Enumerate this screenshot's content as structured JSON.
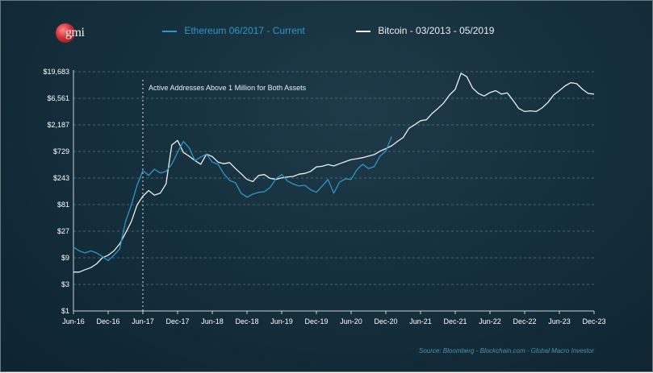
{
  "brand": {
    "logo_text": "gmi"
  },
  "legend": {
    "eth_label": "Ethereum 06/2017 - Current",
    "btc_label": "Bitcoin - 03/2013 - 05/2019"
  },
  "colors": {
    "ethereum": "#2e96c8",
    "bitcoin": "#e9eef1",
    "background": "#15303d",
    "axis_text": "#ffffff"
  },
  "source": "Source: Bloomberg - Blockchain.com - Global Macro Investor",
  "chart_data": {
    "type": "line",
    "y_scale": "log",
    "ylim": [
      1,
      19683
    ],
    "y_ticks": [
      {
        "value": 1,
        "label": "$1"
      },
      {
        "value": 3,
        "label": "$3"
      },
      {
        "value": 9,
        "label": "$9"
      },
      {
        "value": 27,
        "label": "$27"
      },
      {
        "value": 81,
        "label": "$81"
      },
      {
        "value": 243,
        "label": "$243"
      },
      {
        "value": 729,
        "label": "$729"
      },
      {
        "value": 2187,
        "label": "$2,187"
      },
      {
        "value": 6561,
        "label": "$6,561"
      },
      {
        "value": 19683,
        "label": "$19,683"
      }
    ],
    "x_ticks": [
      "Jun-16",
      "Dec-16",
      "Jun-17",
      "Dec-17",
      "Jun-18",
      "Dec-18",
      "Jun-19",
      "Dec-19",
      "Jun-20",
      "Dec-20",
      "Jun-21",
      "Dec-21",
      "Jun-22",
      "Dec-22",
      "Jun-23",
      "Dec-23"
    ],
    "annotation": {
      "x": "Jun-17",
      "text": "Active  Addresses Above 1 Million for Both Assets"
    },
    "grid": {
      "horizontal": true,
      "style": "dashed"
    },
    "series": [
      {
        "name": "Ethereum 06/2017 - Current",
        "points": [
          [
            "Jun-16",
            14
          ],
          [
            "Jul-16",
            12
          ],
          [
            "Aug-16",
            11
          ],
          [
            "Sep-16",
            12
          ],
          [
            "Oct-16",
            11
          ],
          [
            "Nov-16",
            9.5
          ],
          [
            "Dec-16",
            8
          ],
          [
            "Jan-17",
            10
          ],
          [
            "Feb-17",
            13
          ],
          [
            "Mar-17",
            40
          ],
          [
            "Apr-17",
            80
          ],
          [
            "May-17",
            180
          ],
          [
            "Jun-17",
            330
          ],
          [
            "Jul-17",
            270
          ],
          [
            "Aug-17",
            350
          ],
          [
            "Sep-17",
            300
          ],
          [
            "Oct-17",
            320
          ],
          [
            "Nov-17",
            430
          ],
          [
            "Dec-17",
            700
          ],
          [
            "Jan-18",
            1100
          ],
          [
            "Feb-18",
            850
          ],
          [
            "Mar-18",
            500
          ],
          [
            "Apr-18",
            580
          ],
          [
            "May-18",
            650
          ],
          [
            "Jun-18",
            470
          ],
          [
            "Jul-18",
            430
          ],
          [
            "Aug-18",
            290
          ],
          [
            "Sep-18",
            220
          ],
          [
            "Oct-18",
            200
          ],
          [
            "Nov-18",
            130
          ],
          [
            "Dec-18",
            110
          ],
          [
            "Jan-19",
            125
          ],
          [
            "Feb-19",
            135
          ],
          [
            "Mar-19",
            138
          ],
          [
            "Apr-19",
            165
          ],
          [
            "May-19",
            235
          ],
          [
            "Jun-19",
            280
          ],
          [
            "Jul-19",
            215
          ],
          [
            "Aug-19",
            190
          ],
          [
            "Sep-19",
            175
          ],
          [
            "Oct-19",
            180
          ],
          [
            "Nov-19",
            150
          ],
          [
            "Dec-19",
            135
          ],
          [
            "Jan-20",
            175
          ],
          [
            "Feb-20",
            230
          ],
          [
            "Mar-20",
            130
          ],
          [
            "Apr-20",
            205
          ],
          [
            "May-20",
            235
          ],
          [
            "Jun-20",
            230
          ],
          [
            "Jul-20",
            345
          ],
          [
            "Aug-20",
            430
          ],
          [
            "Sep-20",
            360
          ],
          [
            "Oct-20",
            390
          ],
          [
            "Nov-20",
            600
          ],
          [
            "Dec-20",
            740
          ],
          [
            "Jan-21",
            1350
          ]
        ]
      },
      {
        "name": "Bitcoin - 03/2013 - 05/2019",
        "points": [
          [
            "Jun-16",
            5
          ],
          [
            "Jul-16",
            5
          ],
          [
            "Aug-16",
            5.5
          ],
          [
            "Sep-16",
            6
          ],
          [
            "Oct-16",
            7
          ],
          [
            "Nov-16",
            9
          ],
          [
            "Dec-16",
            10
          ],
          [
            "Jan-17",
            12
          ],
          [
            "Feb-17",
            16
          ],
          [
            "Mar-17",
            25
          ],
          [
            "Apr-17",
            40
          ],
          [
            "May-17",
            80
          ],
          [
            "Jun-17",
            115
          ],
          [
            "Jul-17",
            145
          ],
          [
            "Aug-17",
            120
          ],
          [
            "Sep-17",
            130
          ],
          [
            "Oct-17",
            190
          ],
          [
            "Nov-17",
            950
          ],
          [
            "Dec-17",
            1150
          ],
          [
            "Jan-18",
            700
          ],
          [
            "Feb-18",
            600
          ],
          [
            "Mar-18",
            500
          ],
          [
            "Apr-18",
            430
          ],
          [
            "May-18",
            650
          ],
          [
            "Jun-18",
            590
          ],
          [
            "Jul-18",
            470
          ],
          [
            "Aug-18",
            440
          ],
          [
            "Sep-18",
            460
          ],
          [
            "Oct-18",
            360
          ],
          [
            "Nov-18",
            290
          ],
          [
            "Dec-18",
            230
          ],
          [
            "Jan-19",
            210
          ],
          [
            "Feb-19",
            270
          ],
          [
            "Mar-19",
            280
          ],
          [
            "Apr-19",
            240
          ],
          [
            "May-19",
            230
          ],
          [
            "Jun-19",
            245
          ],
          [
            "Jul-19",
            255
          ],
          [
            "Aug-19",
            260
          ],
          [
            "Sep-19",
            285
          ],
          [
            "Oct-19",
            295
          ],
          [
            "Nov-19",
            320
          ],
          [
            "Dec-19",
            385
          ],
          [
            "Jan-20",
            395
          ],
          [
            "Feb-20",
            425
          ],
          [
            "Mar-20",
            400
          ],
          [
            "Apr-20",
            440
          ],
          [
            "May-20",
            480
          ],
          [
            "Jun-20",
            520
          ],
          [
            "Jul-20",
            540
          ],
          [
            "Aug-20",
            565
          ],
          [
            "Sep-20",
            600
          ],
          [
            "Oct-20",
            640
          ],
          [
            "Nov-20",
            740
          ],
          [
            "Dec-20",
            820
          ],
          [
            "Jan-21",
            920
          ],
          [
            "Feb-21",
            1100
          ],
          [
            "Mar-21",
            1300
          ],
          [
            "Apr-21",
            1900
          ],
          [
            "May-21",
            2200
          ],
          [
            "Jun-21",
            2600
          ],
          [
            "Jul-21",
            2700
          ],
          [
            "Aug-21",
            3500
          ],
          [
            "Sep-21",
            4300
          ],
          [
            "Oct-21",
            5400
          ],
          [
            "Nov-21",
            7500
          ],
          [
            "Dec-21",
            9500
          ],
          [
            "Jan-22",
            18500
          ],
          [
            "Feb-22",
            16000
          ],
          [
            "Mar-22",
            10000
          ],
          [
            "Apr-22",
            8000
          ],
          [
            "May-22",
            7200
          ],
          [
            "Jun-22",
            8300
          ],
          [
            "Jul-22",
            9000
          ],
          [
            "Aug-22",
            7800
          ],
          [
            "Sep-22",
            8200
          ],
          [
            "Oct-22",
            6000
          ],
          [
            "Nov-22",
            4300
          ],
          [
            "Dec-22",
            3800
          ],
          [
            "Jan-23",
            3900
          ],
          [
            "Feb-23",
            3800
          ],
          [
            "Mar-23",
            4400
          ],
          [
            "Apr-23",
            5500
          ],
          [
            "May-23",
            7500
          ],
          [
            "Jun-23",
            9000
          ],
          [
            "Jul-23",
            11000
          ],
          [
            "Aug-23",
            12500
          ],
          [
            "Sep-23",
            12000
          ],
          [
            "Oct-23",
            9500
          ],
          [
            "Nov-23",
            8000
          ],
          [
            "Dec-23",
            7800
          ]
        ]
      }
    ]
  }
}
